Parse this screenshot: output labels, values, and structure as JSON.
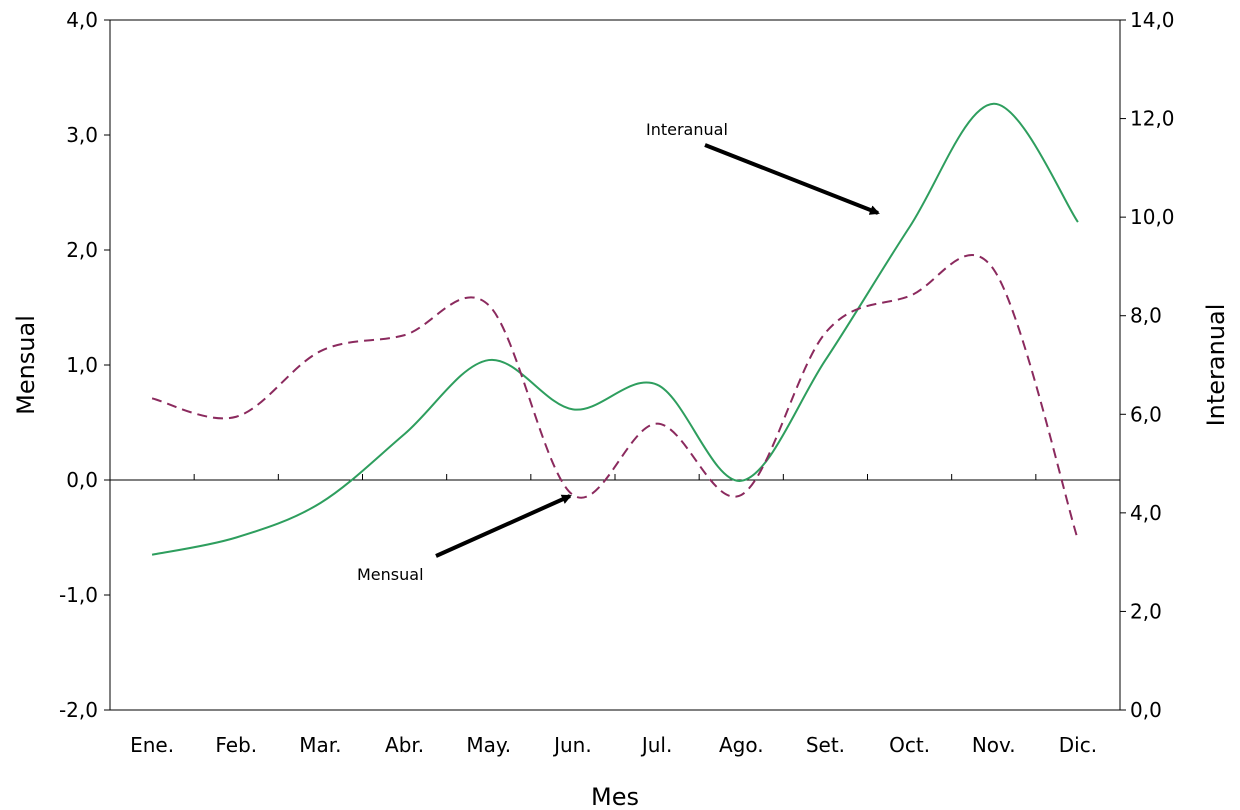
{
  "chart_data": {
    "type": "line",
    "categories": [
      "Ene.",
      "Feb.",
      "Mar.",
      "Abr.",
      "May.",
      "Jun.",
      "Jul.",
      "Ago.",
      "Set.",
      "Oct.",
      "Nov.",
      "Dic."
    ],
    "xlabel": "Mes",
    "ylabel_left": "Mensual",
    "ylabel_right": "Interanual",
    "ylim_left": [
      -2,
      4
    ],
    "ylim_right": [
      0,
      14
    ],
    "yticks_left": [
      "-2,0",
      "-1,0",
      "0,0",
      "1,0",
      "2,0",
      "3,0",
      "4,0"
    ],
    "yticks_right": [
      "0,0",
      "2,0",
      "4,0",
      "6,0",
      "8,0",
      "10,0",
      "12,0",
      "14,0"
    ],
    "grid": false,
    "series": [
      {
        "name": "Mensual",
        "axis": "left",
        "style": "dashed",
        "color": "#8b2a5e",
        "values": [
          0.71,
          0.55,
          1.12,
          1.26,
          1.52,
          -0.13,
          0.49,
          -0.13,
          1.28,
          1.6,
          1.83,
          -0.52
        ]
      },
      {
        "name": "Interanual",
        "axis": "right",
        "style": "solid",
        "color": "#2e9e5e",
        "values": [
          3.15,
          3.5,
          4.2,
          5.6,
          7.1,
          6.1,
          6.6,
          4.65,
          7.1,
          9.8,
          12.3,
          9.9
        ]
      }
    ],
    "annotations": {
      "interanual": "Interanual",
      "mensual": "Mensual"
    }
  }
}
